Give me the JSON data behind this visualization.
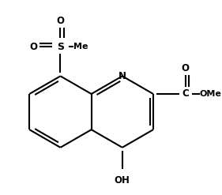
{
  "bg_color": "#ffffff",
  "line_color": "#000000",
  "text_color": "#000000",
  "bond_lw": 1.5,
  "font_size": 8.5,
  "fig_width": 2.81,
  "fig_height": 2.47,
  "dpi": 100,
  "xlim": [
    -0.3,
    2.5
  ],
  "ylim": [
    -1.6,
    1.1
  ]
}
